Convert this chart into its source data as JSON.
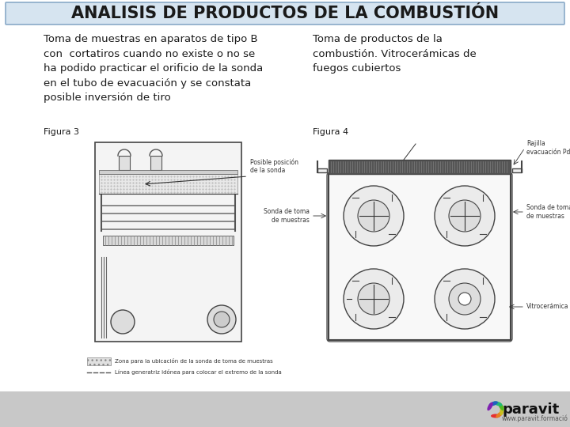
{
  "title": "ANALISIS DE PRODUCTOS DE LA COMBUSTIÓN",
  "title_bg_top": "#d6e4f0",
  "title_bg_bottom": "#b8d0e8",
  "title_border": "#8aaac8",
  "title_fontsize": 15,
  "title_fontweight": "bold",
  "bg_color": "#dde6ef",
  "main_bg": "#ffffff",
  "text_left": "Toma de muestras en aparatos de tipo B\ncon  cortatiros cuando no existe o no se\nha podido practicar el orificio de la sonda\nen el tubo de evacuación y se constata\nposible inversión de tiro",
  "text_right": "Toma de productos de la\ncombustión. Vitrocerámicas de\nfuegos cubiertos",
  "fig3_label": "Figura 3",
  "fig4_label": "Figura 4",
  "logo_text": "paravit",
  "logo_subtext": "www.paravit.formació",
  "text_color": "#1a1a1a",
  "text_fontsize": 9.5,
  "label_fontsize": 8,
  "logo_fontsize": 13,
  "footer_color": "#c8c8c8",
  "legend1_text": "Zona para la ubicación de la sonda de toma de muestras",
  "legend2_text": "Línea generatriz idónea para colocar el extremo de la sonda",
  "annot_sonda": "Posible posición\nde la sonda",
  "annot_rajilla": "Rajilla\nevacuación Pd.C",
  "annot_sonda_left": "Sonda de toma\nde muestras",
  "annot_sonda_right": "Sonda de toma\nde muestras",
  "annot_vitro": "Vitrocerámica"
}
